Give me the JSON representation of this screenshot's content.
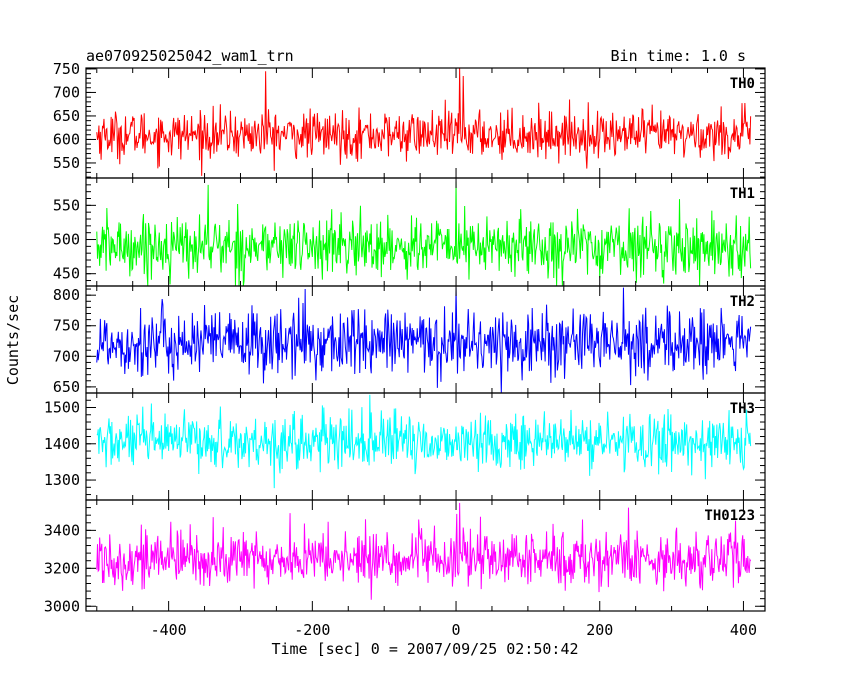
{
  "header": {
    "title": "ae070925025042_wam1_trn",
    "bin_time": "Bin time: 1.0 s"
  },
  "chart_data": {
    "type": "line",
    "xlabel": "Time [sec] 0 = 2007/09/25 02:50:42",
    "ylabel": "Counts/sec",
    "xlim": [
      -515,
      430
    ],
    "x_range_data": [
      -500,
      410
    ],
    "x_ticks": [
      -400,
      -200,
      0,
      200,
      400
    ],
    "grid": false,
    "panels": [
      {
        "name": "TH0",
        "color": "#ff0000",
        "ylim": [
          518,
          752
        ],
        "y_ticks": [
          550,
          600,
          650,
          700,
          750
        ],
        "mean": 610,
        "sigma": 25,
        "peaks": [
          {
            "x": -265,
            "y": 745
          },
          {
            "x": 5,
            "y": 752
          },
          {
            "x": 10,
            "y": 735
          }
        ]
      },
      {
        "name": "TH1",
        "color": "#00ff00",
        "ylim": [
          432,
          590
        ],
        "y_ticks": [
          450,
          500,
          550
        ],
        "mean": 490,
        "sigma": 22,
        "peaks": [
          {
            "x": 0,
            "y": 585
          },
          {
            "x": -345,
            "y": 580
          }
        ]
      },
      {
        "name": "TH2",
        "color": "#0000ff",
        "ylim": [
          640,
          815
        ],
        "y_ticks": [
          650,
          700,
          750,
          800
        ],
        "mean": 722,
        "sigma": 28,
        "peaks": [
          {
            "x": 0,
            "y": 812
          },
          {
            "x": -210,
            "y": 810
          }
        ]
      },
      {
        "name": "TH3",
        "color": "#00ffff",
        "ylim": [
          1245,
          1540
        ],
        "y_ticks": [
          1300,
          1400,
          1500
        ],
        "mean": 1405,
        "sigma": 38,
        "peaks": [
          {
            "x": -120,
            "y": 1535
          }
        ]
      },
      {
        "name": "TH0123",
        "color": "#ff00ff",
        "ylim": [
          2975,
          3560
        ],
        "y_ticks": [
          3000,
          3200,
          3400
        ],
        "mean": 3250,
        "sigma": 75,
        "peaks": [
          {
            "x": 5,
            "y": 3545
          },
          {
            "x": 240,
            "y": 3520
          }
        ]
      }
    ]
  }
}
